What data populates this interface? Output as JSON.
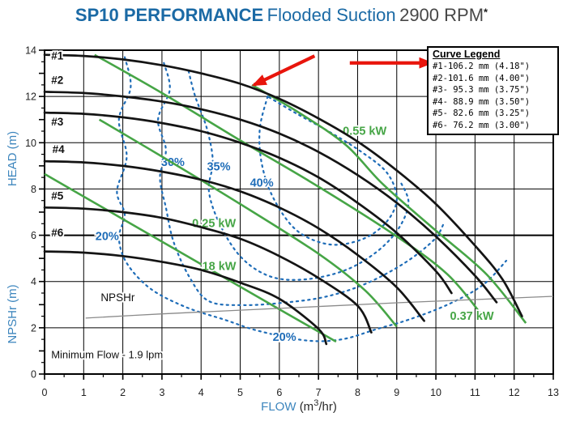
{
  "title": {
    "part1": "SP10 PERFORMANCE",
    "part2": "Flooded Suction",
    "part3": "2900 RPM",
    "footnote": "*"
  },
  "colors": {
    "brand_blue": "#1b6aa5",
    "axis_blue": "#3c85bd",
    "title_dark": "#474747",
    "curve_black": "#141414",
    "power_green": "#46a546",
    "efficiency_blue": "#1f6db8",
    "arrow_red": "#e8150c",
    "npshr_gray": "#8a8a8a",
    "grid_black": "#000000",
    "tick_text": "#222222"
  },
  "legend": {
    "title": "Curve Legend",
    "entries": [
      "#1-106.2 mm (4.18\")",
      "#2-101.6 mm (4.00\")",
      "#3- 95.3 mm (3.75\")",
      "#4- 88.9 mm (3.50\")",
      "#5- 82.6 mm (3.25\")",
      "#6- 76.2 mm (3.00\")"
    ]
  },
  "axis_labels": {
    "head": "HEAD (m)",
    "npshr": "NPSHr (m)",
    "flow": "FLOW",
    "flow_unit_pre": "(m",
    "flow_unit_sup": "3",
    "flow_unit_post": "/hr)"
  },
  "note": "Minimum Flow - 1.9 lpm",
  "chart_data": {
    "type": "line",
    "x_axis": {
      "min": 0,
      "max": 13,
      "major_tick": 1,
      "minor_tick": 0.5,
      "tick_labels": [
        "0",
        "1",
        "2",
        "3",
        "4",
        "5",
        "6",
        "7",
        "8",
        "9",
        "10",
        "11",
        "12",
        "13"
      ]
    },
    "y_axis": {
      "min": 0,
      "max": 14,
      "gridline_step": 2,
      "major_tick": 1,
      "minor_tick": 0.5,
      "tick_labels": [
        "0",
        "2",
        "4",
        "6",
        "8",
        "10",
        "12",
        "14"
      ]
    },
    "pump_curves": [
      {
        "id": "#1",
        "impeller": "106.2 mm (4.18\")",
        "label_at": [
          0.17,
          13.6
        ],
        "points": [
          [
            0,
            13.8
          ],
          [
            1,
            13.75
          ],
          [
            2,
            13.6
          ],
          [
            3,
            13.35
          ],
          [
            4,
            13.0
          ],
          [
            5,
            12.55
          ],
          [
            6,
            11.9
          ],
          [
            7,
            11.05
          ],
          [
            8,
            10.05
          ],
          [
            9,
            8.8
          ],
          [
            10,
            7.35
          ],
          [
            11,
            5.55
          ],
          [
            11.7,
            4.1
          ],
          [
            12.2,
            2.5
          ]
        ]
      },
      {
        "id": "#2",
        "impeller": "101.6 mm (4.00\")",
        "label_at": [
          0.17,
          12.55
        ],
        "points": [
          [
            0,
            12.2
          ],
          [
            1,
            12.15
          ],
          [
            2,
            12.0
          ],
          [
            3,
            11.78
          ],
          [
            4,
            11.45
          ],
          [
            5,
            11.0
          ],
          [
            6,
            10.4
          ],
          [
            7,
            9.6
          ],
          [
            8,
            8.6
          ],
          [
            9,
            7.4
          ],
          [
            10,
            5.95
          ],
          [
            11,
            4.25
          ],
          [
            11.55,
            3.1
          ]
        ]
      },
      {
        "id": "#3",
        "impeller": "95.3 mm (3.75\")",
        "label_at": [
          0.17,
          10.75
        ],
        "points": [
          [
            0,
            11.3
          ],
          [
            1,
            11.25
          ],
          [
            2,
            11.1
          ],
          [
            3,
            10.85
          ],
          [
            4,
            10.5
          ],
          [
            5,
            10.0
          ],
          [
            6,
            9.35
          ],
          [
            7,
            8.5
          ],
          [
            8,
            7.4
          ],
          [
            9,
            6.1
          ],
          [
            10,
            4.45
          ],
          [
            10.4,
            3.5
          ]
        ]
      },
      {
        "id": "#4",
        "impeller": "88.9 mm (3.50\")",
        "label_at": [
          0.2,
          9.55
        ],
        "points": [
          [
            0,
            9.2
          ],
          [
            1,
            9.15
          ],
          [
            2,
            9.0
          ],
          [
            3,
            8.75
          ],
          [
            4,
            8.4
          ],
          [
            5,
            7.9
          ],
          [
            6,
            7.2
          ],
          [
            7,
            6.3
          ],
          [
            8,
            5.15
          ],
          [
            9,
            3.75
          ],
          [
            9.7,
            2.3
          ]
        ]
      },
      {
        "id": "#5",
        "impeller": "82.6 mm (3.25\")",
        "label_at": [
          0.17,
          7.55
        ],
        "points": [
          [
            0,
            7.2
          ],
          [
            1,
            7.15
          ],
          [
            2,
            7.0
          ],
          [
            3,
            6.75
          ],
          [
            4,
            6.35
          ],
          [
            5,
            5.85
          ],
          [
            6,
            5.1
          ],
          [
            7,
            4.15
          ],
          [
            8,
            2.95
          ],
          [
            8.35,
            1.8
          ]
        ]
      },
      {
        "id": "#6",
        "impeller": "76.2 mm (3.00\")",
        "label_at": [
          0.17,
          5.95
        ],
        "points": [
          [
            0,
            5.3
          ],
          [
            1,
            5.25
          ],
          [
            2,
            5.1
          ],
          [
            3,
            4.85
          ],
          [
            4,
            4.5
          ],
          [
            5,
            3.95
          ],
          [
            6,
            3.25
          ],
          [
            7,
            1.95
          ],
          [
            7.2,
            1.3
          ]
        ]
      }
    ],
    "power_curves": [
      {
        "kw": 0.18,
        "label": ".18 kW",
        "label_at": [
          4.42,
          4.5
        ],
        "points": [
          [
            0,
            8.65
          ],
          [
            2,
            6.7
          ],
          [
            4,
            4.75
          ],
          [
            6,
            2.8
          ],
          [
            7.45,
            1.4
          ]
        ]
      },
      {
        "kw": 0.25,
        "label": "0.25 kW",
        "label_at": [
          4.33,
          6.35
        ],
        "points": [
          [
            1.4,
            11.0
          ],
          [
            3,
            9.4
          ],
          [
            5,
            7.35
          ],
          [
            7,
            5.2
          ],
          [
            8.2,
            3.6
          ],
          [
            9,
            2.05
          ]
        ]
      },
      {
        "kw": 0.37,
        "label": "0.37 kW",
        "label_at": [
          10.92,
          2.35
        ],
        "points": [
          [
            1.28,
            13.8
          ],
          [
            3,
            12.15
          ],
          [
            5,
            10.1
          ],
          [
            7,
            8.1
          ],
          [
            9,
            5.95
          ],
          [
            10.3,
            4.3
          ],
          [
            11.2,
            2.5
          ]
        ]
      },
      {
        "kw": 0.55,
        "label": "0.55 kW",
        "label_at": [
          8.18,
          10.35
        ],
        "points": [
          [
            5.3,
            12.5
          ],
          [
            6.5,
            11.3
          ],
          [
            7.7,
            9.9
          ],
          [
            8.65,
            8.2
          ],
          [
            10,
            6.2
          ],
          [
            11.3,
            4.3
          ],
          [
            12.3,
            2.2
          ]
        ]
      }
    ],
    "efficiency_contours": [
      {
        "pct": 20,
        "label": "20%",
        "labels_at": [
          [
            1.6,
            5.8
          ],
          [
            6.13,
            1.44
          ]
        ],
        "points": [
          [
            2.05,
            13.7
          ],
          [
            2.2,
            12.4
          ],
          [
            1.9,
            11.0
          ],
          [
            2.1,
            9.4
          ],
          [
            1.85,
            7.9
          ],
          [
            2.05,
            6.9
          ],
          [
            1.9,
            5.9
          ],
          [
            2.1,
            4.8
          ],
          [
            2.7,
            3.7
          ],
          [
            3.6,
            2.9
          ],
          [
            4.6,
            2.35
          ],
          [
            5.5,
            1.85
          ],
          [
            6.7,
            1.45
          ],
          [
            7.6,
            1.5
          ],
          [
            8.5,
            1.95
          ],
          [
            9.3,
            2.35
          ],
          [
            10.3,
            3.0
          ],
          [
            11.2,
            3.85
          ],
          [
            11.8,
            4.9
          ]
        ]
      },
      {
        "pct": 30,
        "label": "30%",
        "labels_at": [
          [
            3.28,
            9.0
          ]
        ],
        "points": [
          [
            3.05,
            13.45
          ],
          [
            3.2,
            12.3
          ],
          [
            2.9,
            11.0
          ],
          [
            3.1,
            9.7
          ],
          [
            2.95,
            8.5
          ],
          [
            3.1,
            7.2
          ],
          [
            3.3,
            5.7
          ],
          [
            3.7,
            4.2
          ],
          [
            4.2,
            3.15
          ],
          [
            5.1,
            2.98
          ],
          [
            6.2,
            3.1
          ],
          [
            7.2,
            3.35
          ],
          [
            8.2,
            3.9
          ],
          [
            9.2,
            4.8
          ],
          [
            9.95,
            5.8
          ],
          [
            10.2,
            6.5
          ]
        ]
      },
      {
        "pct": 35,
        "label": "35%",
        "labels_at": [
          [
            4.45,
            8.8
          ]
        ],
        "points": [
          [
            3.68,
            13.1
          ],
          [
            3.85,
            12.0
          ],
          [
            4.15,
            10.6
          ],
          [
            4.3,
            9.2
          ],
          [
            4.2,
            7.9
          ],
          [
            4.5,
            6.4
          ],
          [
            5.05,
            5.0
          ],
          [
            5.8,
            4.2
          ],
          [
            6.7,
            4.1
          ],
          [
            7.7,
            4.5
          ],
          [
            8.5,
            5.3
          ],
          [
            9.05,
            6.3
          ],
          [
            9.3,
            7.4
          ],
          [
            9.1,
            8.3
          ]
        ]
      },
      {
        "pct": 40,
        "label": "40%",
        "labels_at": [
          [
            5.55,
            8.1
          ]
        ],
        "points": [
          [
            5.7,
            12.0
          ],
          [
            5.5,
            10.6
          ],
          [
            5.55,
            9.1
          ],
          [
            5.85,
            7.6
          ],
          [
            6.45,
            6.2
          ],
          [
            7.3,
            5.6
          ],
          [
            8.15,
            5.85
          ],
          [
            8.75,
            6.6
          ],
          [
            9.0,
            7.6
          ],
          [
            8.75,
            8.7
          ],
          [
            8.1,
            9.6
          ],
          [
            7.3,
            10.45
          ],
          [
            6.45,
            11.25
          ],
          [
            5.7,
            12.0
          ]
        ]
      }
    ],
    "npshr_curve": {
      "label": "NPSHr",
      "label_at": [
        1.87,
        3.15
      ],
      "points": [
        [
          1.05,
          2.42
        ],
        [
          3,
          2.6
        ],
        [
          5,
          2.76
        ],
        [
          7,
          2.92
        ],
        [
          9,
          3.08
        ],
        [
          11,
          3.22
        ],
        [
          13,
          3.36
        ]
      ]
    },
    "note_at": [
      0.17,
      0.68
    ],
    "arrows": [
      {
        "from": [
          6.9,
          13.75
        ],
        "to": [
          5.35,
          12.5
        ]
      },
      {
        "from": [
          7.8,
          13.45
        ],
        "to": [
          9.88,
          13.45
        ]
      }
    ]
  }
}
